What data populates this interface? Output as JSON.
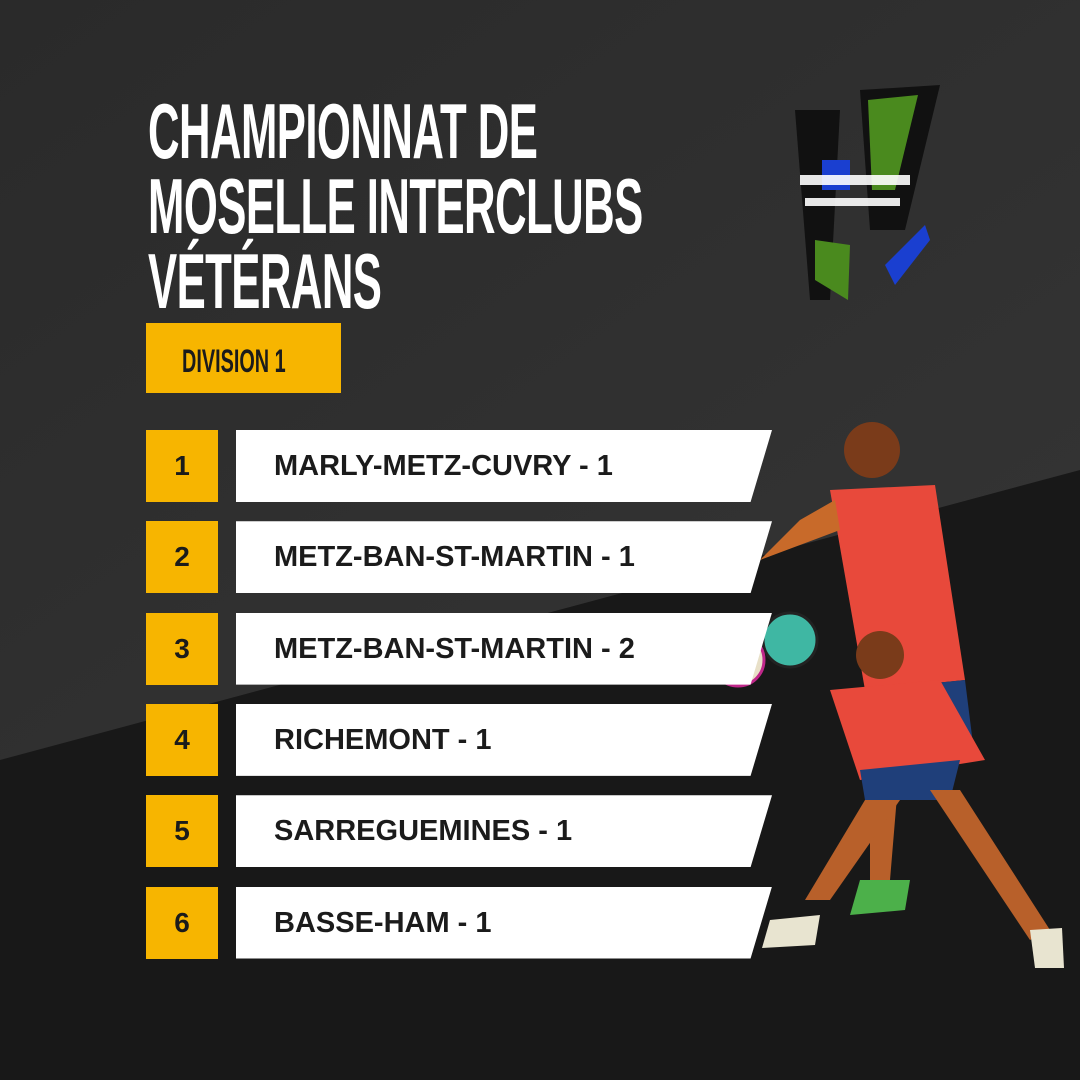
{
  "header": {
    "title_lines": [
      "CHAMPIONNAT DE",
      "MOSELLE INTERCLUBS",
      "VÉTÉRANS"
    ],
    "division": "DIVISION 1"
  },
  "ranking": [
    {
      "rank": 1,
      "team": "MARLY-METZ-CUVRY - 1"
    },
    {
      "rank": 2,
      "team": "METZ-BAN-ST-MARTIN - 1"
    },
    {
      "rank": 3,
      "team": "METZ-BAN-ST-MARTIN - 2"
    },
    {
      "rank": 4,
      "team": "RICHEMONT - 1"
    },
    {
      "rank": 5,
      "team": "SARREGUEMINES - 1"
    },
    {
      "rank": 6,
      "team": "BASSE-HAM - 1"
    }
  ]
}
